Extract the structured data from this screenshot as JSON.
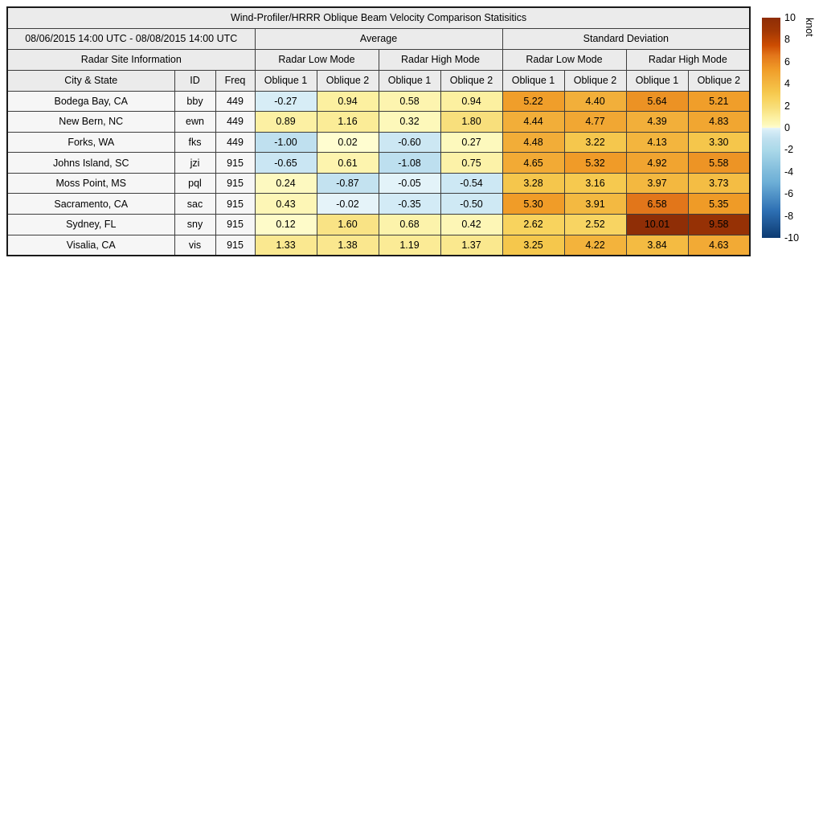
{
  "chart_data": {
    "type": "table",
    "title": "Wind-Profiler/HRRR Oblique Beam Velocity Comparison Statisitics",
    "date_range": "08/06/2015 14:00 UTC - 08/08/2015 14:00 UTC",
    "column_groups": {
      "average": "Average",
      "standard_deviation": "Standard Deviation",
      "site_info": "Radar Site Information",
      "modes": [
        "Radar Low Mode",
        "Radar High Mode",
        "Radar Low Mode",
        "Radar High Mode"
      ]
    },
    "columns": [
      "City & State",
      "ID",
      "Freq",
      "Oblique 1",
      "Oblique 2",
      "Oblique 1",
      "Oblique 2",
      "Oblique 1",
      "Oblique 2",
      "Oblique 1",
      "Oblique 2"
    ],
    "rows": [
      {
        "city": "Bodega Bay, CA",
        "id": "bby",
        "freq": "449",
        "values": [
          -0.27,
          0.94,
          0.58,
          0.94,
          5.22,
          4.4,
          5.64,
          5.21
        ]
      },
      {
        "city": "New Bern, NC",
        "id": "ewn",
        "freq": "449",
        "values": [
          0.89,
          1.16,
          0.32,
          1.8,
          4.44,
          4.77,
          4.39,
          4.83
        ]
      },
      {
        "city": "Forks, WA",
        "id": "fks",
        "freq": "449",
        "values": [
          -1.0,
          0.02,
          -0.6,
          0.27,
          4.48,
          3.22,
          4.13,
          3.3
        ]
      },
      {
        "city": "Johns Island, SC",
        "id": "jzi",
        "freq": "915",
        "values": [
          -0.65,
          0.61,
          -1.08,
          0.75,
          4.65,
          5.32,
          4.92,
          5.58
        ]
      },
      {
        "city": "Moss Point, MS",
        "id": "pql",
        "freq": "915",
        "values": [
          0.24,
          -0.87,
          -0.05,
          -0.54,
          3.28,
          3.16,
          3.97,
          3.73
        ]
      },
      {
        "city": "Sacramento, CA",
        "id": "sac",
        "freq": "915",
        "values": [
          0.43,
          -0.02,
          -0.35,
          -0.5,
          5.3,
          3.91,
          6.58,
          5.35
        ]
      },
      {
        "city": "Sydney, FL",
        "id": "sny",
        "freq": "915",
        "values": [
          0.12,
          1.6,
          0.68,
          0.42,
          2.62,
          2.52,
          10.01,
          9.58
        ]
      },
      {
        "city": "Visalia, CA",
        "id": "vis",
        "freq": "915",
        "values": [
          1.33,
          1.38,
          1.19,
          1.37,
          3.25,
          4.22,
          3.84,
          4.63
        ]
      }
    ],
    "colorbar": {
      "label": "knot",
      "min": -10,
      "max": 10,
      "ticks": [
        10,
        8,
        6,
        4,
        2,
        0,
        -2,
        -4,
        -6,
        -8,
        -10
      ],
      "stops_negative": [
        [
          -10,
          "#0d3b72"
        ],
        [
          -7.5,
          "#2e70b4"
        ],
        [
          -5.0,
          "#6caed6"
        ],
        [
          -4.0,
          "#7fbbdb"
        ],
        [
          -2.0,
          "#abd9e9"
        ],
        [
          -1.0,
          "#bfe0ef"
        ],
        [
          -0.3,
          "#d5ecf6"
        ],
        [
          0,
          "#e6f4f9"
        ]
      ],
      "stops_positive": [
        [
          0,
          "#fffdd2"
        ],
        [
          0.3,
          "#fdf8bb"
        ],
        [
          1.0,
          "#fcef9e"
        ],
        [
          1.8,
          "#f8df7c"
        ],
        [
          2.6,
          "#f8d35f"
        ],
        [
          3.3,
          "#f5c64b"
        ],
        [
          4.5,
          "#f2ad38"
        ],
        [
          5.3,
          "#f09c28"
        ],
        [
          6.6,
          "#e2751a"
        ],
        [
          7.5,
          "#cc4c02"
        ],
        [
          8.75,
          "#a33804"
        ],
        [
          10.1,
          "#8e2d06"
        ]
      ]
    }
  },
  "colors": {
    "header_bg": "#ebebeb",
    "info_cell_bg": "#f6f6f6",
    "grid_border": "#3d3d3d",
    "outer_border": "#1a1a1a",
    "page_bg": "#ffffff",
    "text": "#000000"
  }
}
